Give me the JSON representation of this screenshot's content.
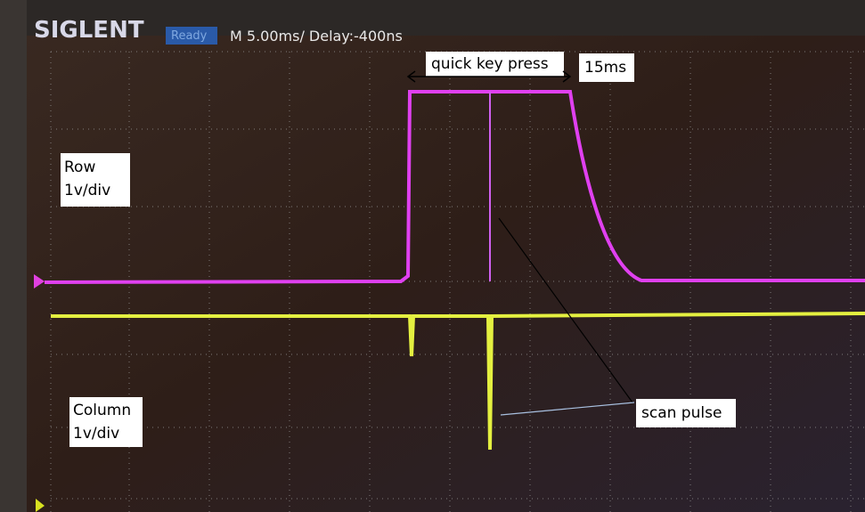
{
  "header": {
    "brand": "SIGLENT",
    "status": "Ready",
    "timebase": "M 5.00ms/ Delay:-400ns"
  },
  "annotations": {
    "row_label": [
      "Row",
      "1v/div"
    ],
    "column_label": [
      "Column",
      "1v/div"
    ],
    "key_press": "quick key press",
    "duration": "15ms",
    "scan_pulse": "scan pulse"
  }
}
